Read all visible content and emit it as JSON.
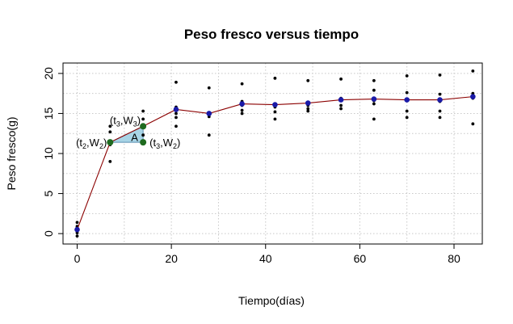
{
  "chart_data": {
    "type": "scatter",
    "title": "Peso fresco versus tiempo",
    "xlabel": "Tiempo(días)",
    "ylabel": "Peso fresco(g)",
    "xlim": [
      -3,
      86
    ],
    "ylim": [
      -1.3,
      21.3
    ],
    "xticks": [
      0,
      20,
      40,
      60,
      80
    ],
    "yticks": [
      0,
      5,
      10,
      15,
      20
    ],
    "grid": true,
    "colors": {
      "raw_points": "#000000",
      "mean_points": "#1a1aa8",
      "mean_line": "#8b0000",
      "triangle_fill": "#a8d4e6",
      "triangle_vertices": "#1f6b1f",
      "grid": "#c8c8c8"
    },
    "raw_points": [
      {
        "x": 0,
        "y": 1.4
      },
      {
        "x": 0,
        "y": 0.9
      },
      {
        "x": 0,
        "y": 0.7
      },
      {
        "x": 0,
        "y": 0.1
      },
      {
        "x": 0,
        "y": -0.3
      },
      {
        "x": 7,
        "y": 13.4
      },
      {
        "x": 7,
        "y": 12.7
      },
      {
        "x": 7,
        "y": 11.5
      },
      {
        "x": 7,
        "y": 11.1
      },
      {
        "x": 7,
        "y": 9.0
      },
      {
        "x": 14,
        "y": 15.3
      },
      {
        "x": 14,
        "y": 14.3
      },
      {
        "x": 14,
        "y": 13.5
      },
      {
        "x": 14,
        "y": 12.3
      },
      {
        "x": 14,
        "y": 11.2
      },
      {
        "x": 21,
        "y": 18.9
      },
      {
        "x": 21,
        "y": 15.8
      },
      {
        "x": 21,
        "y": 15.0
      },
      {
        "x": 21,
        "y": 14.5
      },
      {
        "x": 21,
        "y": 13.4
      },
      {
        "x": 28,
        "y": 18.2
      },
      {
        "x": 28,
        "y": 15.0
      },
      {
        "x": 28,
        "y": 14.8
      },
      {
        "x": 28,
        "y": 14.6
      },
      {
        "x": 28,
        "y": 12.3
      },
      {
        "x": 35,
        "y": 18.7
      },
      {
        "x": 35,
        "y": 16.5
      },
      {
        "x": 35,
        "y": 16.0
      },
      {
        "x": 35,
        "y": 15.4
      },
      {
        "x": 35,
        "y": 15.0
      },
      {
        "x": 42,
        "y": 19.4
      },
      {
        "x": 42,
        "y": 16.1
      },
      {
        "x": 42,
        "y": 15.8
      },
      {
        "x": 42,
        "y": 15.2
      },
      {
        "x": 42,
        "y": 14.3
      },
      {
        "x": 49,
        "y": 19.1
      },
      {
        "x": 49,
        "y": 16.4
      },
      {
        "x": 49,
        "y": 16.0
      },
      {
        "x": 49,
        "y": 15.6
      },
      {
        "x": 49,
        "y": 15.3
      },
      {
        "x": 56,
        "y": 19.3
      },
      {
        "x": 56,
        "y": 16.9
      },
      {
        "x": 56,
        "y": 16.6
      },
      {
        "x": 56,
        "y": 16.0
      },
      {
        "x": 56,
        "y": 15.6
      },
      {
        "x": 63,
        "y": 19.1
      },
      {
        "x": 63,
        "y": 17.9
      },
      {
        "x": 63,
        "y": 16.6
      },
      {
        "x": 63,
        "y": 16.2
      },
      {
        "x": 63,
        "y": 14.3
      },
      {
        "x": 70,
        "y": 19.7
      },
      {
        "x": 70,
        "y": 17.6
      },
      {
        "x": 70,
        "y": 16.6
      },
      {
        "x": 70,
        "y": 15.3
      },
      {
        "x": 70,
        "y": 14.5
      },
      {
        "x": 77,
        "y": 19.8
      },
      {
        "x": 77,
        "y": 17.4
      },
      {
        "x": 77,
        "y": 16.5
      },
      {
        "x": 77,
        "y": 15.3
      },
      {
        "x": 77,
        "y": 14.5
      },
      {
        "x": 84,
        "y": 20.3
      },
      {
        "x": 84,
        "y": 17.5
      },
      {
        "x": 84,
        "y": 17.2
      },
      {
        "x": 84,
        "y": 16.9
      },
      {
        "x": 84,
        "y": 13.7
      }
    ],
    "mean_series": {
      "x": [
        0,
        7,
        14,
        21,
        28,
        35,
        42,
        49,
        56,
        63,
        70,
        77,
        84
      ],
      "y": [
        0.5,
        11.4,
        13.4,
        15.5,
        15.0,
        16.2,
        16.1,
        16.3,
        16.7,
        16.8,
        16.7,
        16.7,
        17.1
      ]
    },
    "triangle": {
      "vertices": [
        {
          "x": 7,
          "y": 11.4
        },
        {
          "x": 14,
          "y": 13.4
        },
        {
          "x": 14,
          "y": 11.4
        }
      ],
      "area_label": "A",
      "labels": [
        {
          "letter_t": "t",
          "sub_t": "2",
          "letter_w": "W",
          "sub_w": "2",
          "x": 7,
          "y": 11.4,
          "anchor": "end"
        },
        {
          "letter_t": "t",
          "sub_t": "3",
          "letter_w": "W",
          "sub_w": "3",
          "x": 14,
          "y": 13.4,
          "anchor": "end"
        },
        {
          "letter_t": "t",
          "sub_t": "3",
          "letter_w": "W",
          "sub_w": "2",
          "x": 14,
          "y": 11.4,
          "anchor": "start"
        }
      ]
    }
  }
}
